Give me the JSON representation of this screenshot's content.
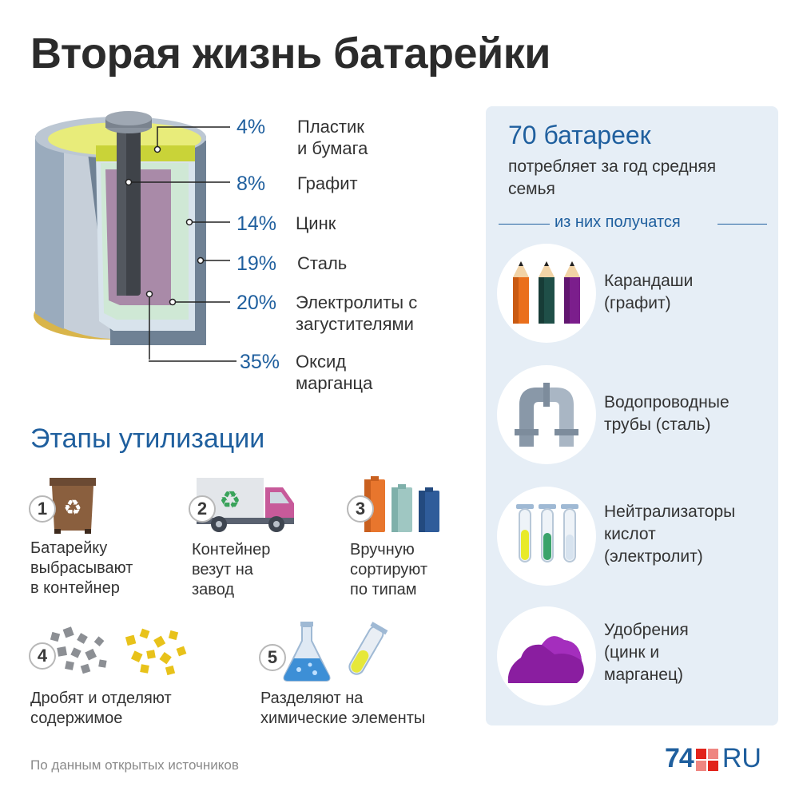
{
  "title": "Вторая жизнь батарейки",
  "composition": [
    {
      "percent": "4%",
      "label": "Пластик\nи бумага"
    },
    {
      "percent": "8%",
      "label": "Графит"
    },
    {
      "percent": "14%",
      "label": "Цинк"
    },
    {
      "percent": "19%",
      "label": "Сталь"
    },
    {
      "percent": "20%",
      "label": "Электролиты с\nзагустителями"
    },
    {
      "percent": "35%",
      "label": "Оксид\nмарганца"
    }
  ],
  "stages_title": "Этапы утилизации",
  "stages": [
    {
      "number": "1",
      "text": "Батарейку\nвыбрасывают\nв контейнер",
      "icon": "recycle-bin-icon"
    },
    {
      "number": "2",
      "text": "Контейнер\nвезут на\nзавод",
      "icon": "recycle-truck-icon"
    },
    {
      "number": "3",
      "text": "Вручную\nсортируют\nпо типам",
      "icon": "batteries-icon"
    },
    {
      "number": "4",
      "text": "Дробят и отделяют\nсодержимое",
      "icon": "crushed-pieces-icon"
    },
    {
      "number": "5",
      "text": "Разделяют на\nхимические элементы",
      "icon": "flask-icon"
    }
  ],
  "panel": {
    "big_text": "70 батареек",
    "sub_text": "потребляет за год средняя\nсемья",
    "divider": "из них получатся",
    "products": [
      {
        "text": "Карандаши\n(графит)",
        "icon": "pencils-icon"
      },
      {
        "text": "Водопроводные\nтрубы (сталь)",
        "icon": "pipe-icon"
      },
      {
        "text": "Нейтрализаторы\nкислот\n(электролит)",
        "icon": "test-tubes-icon"
      },
      {
        "text": "Удобрения\n(цинк и\nмарганец)",
        "icon": "fertilizer-icon"
      }
    ]
  },
  "source": "По данным открытых источников",
  "logo": {
    "number": "74",
    "suffix": "RU"
  },
  "colors": {
    "accent_blue": "#1f5f9e",
    "panel_bg": "#e6eef6",
    "logo_red": "#e2231a"
  }
}
